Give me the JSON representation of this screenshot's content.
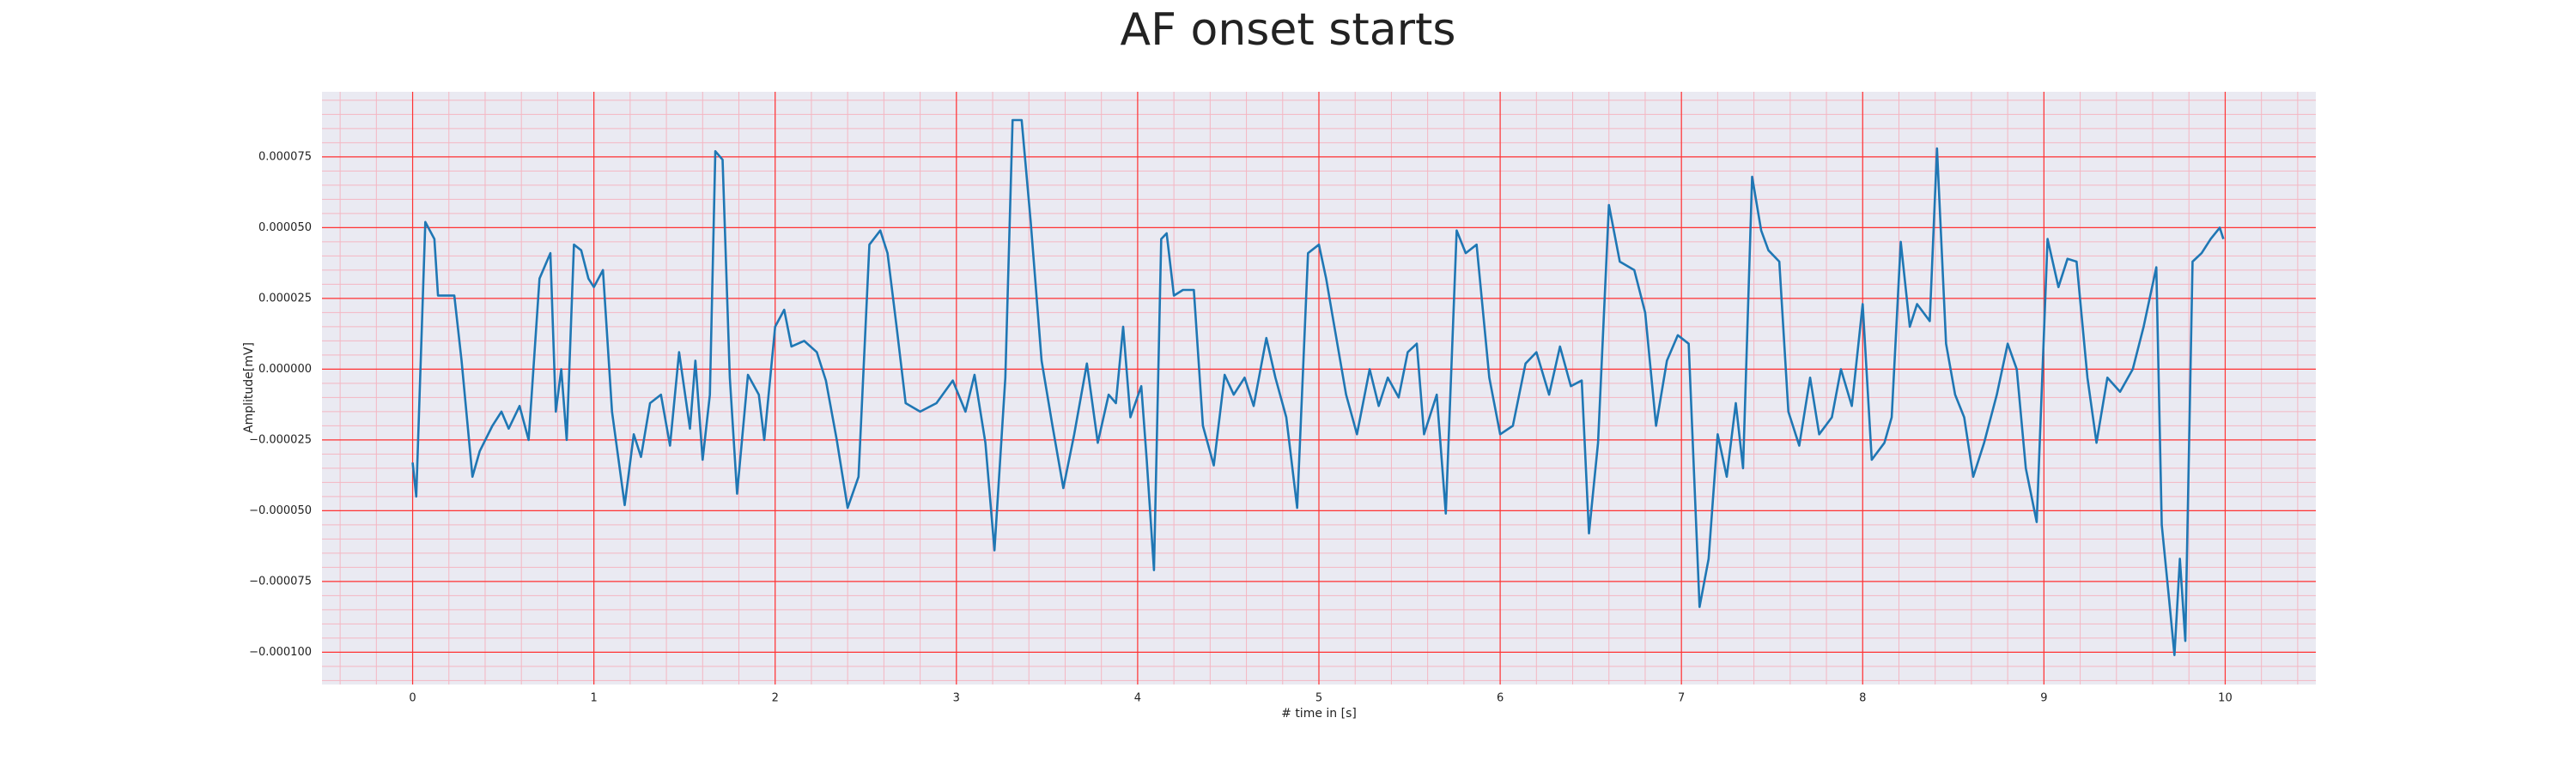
{
  "chart_data": {
    "type": "line",
    "title": "AF onset starts",
    "x_label": "# time in [s]",
    "y_label": "Amplitude[mV]",
    "color": "#1f77b4",
    "grid": true,
    "minor_grid": true,
    "xlim": [
      -0.5,
      10.5
    ],
    "xticks": [
      0,
      1,
      2,
      3,
      4,
      5,
      6,
      7,
      8,
      9,
      10
    ],
    "ylim": [
      -0.0001114,
      9.8e-05
    ],
    "yticks": [
      {
        "value": -0.0001,
        "label": "−0.000100"
      },
      {
        "value": -7.5e-05,
        "label": "−0.000075"
      },
      {
        "value": -5e-05,
        "label": "−0.000050"
      },
      {
        "value": -2.5e-05,
        "label": "−0.000025"
      },
      {
        "value": 0,
        "label": "0.000000"
      },
      {
        "value": 2.5e-05,
        "label": "0.000025"
      },
      {
        "value": 5e-05,
        "label": "0.000050"
      },
      {
        "value": 7.5e-05,
        "label": "0.000075"
      }
    ],
    "x": [
      0,
      0.02,
      0.07,
      0.12,
      0.14,
      0.18,
      0.23,
      0.27,
      0.33,
      0.37,
      0.44,
      0.49,
      0.53,
      0.59,
      0.64,
      0.7,
      0.76,
      0.79,
      0.82,
      0.85,
      0.89,
      0.93,
      0.97,
      1.0,
      1.05,
      1.1,
      1.17,
      1.22,
      1.26,
      1.31,
      1.37,
      1.42,
      1.47,
      1.53,
      1.56,
      1.6,
      1.64,
      1.67,
      1.71,
      1.75,
      1.79,
      1.85,
      1.91,
      1.94,
      2.0,
      2.05,
      2.09,
      2.16,
      2.23,
      2.28,
      2.34,
      2.4,
      2.46,
      2.52,
      2.58,
      2.62,
      2.67,
      2.72,
      2.8,
      2.89,
      2.98,
      3.05,
      3.1,
      3.16,
      3.21,
      3.27,
      3.31,
      3.36,
      3.41,
      3.47,
      3.53,
      3.59,
      3.65,
      3.72,
      3.78,
      3.84,
      3.88,
      3.92,
      3.96,
      4.02,
      4.05,
      4.09,
      4.13,
      4.16,
      4.2,
      4.25,
      4.31,
      4.36,
      4.42,
      4.48,
      4.53,
      4.59,
      4.64,
      4.71,
      4.76,
      4.82,
      4.88,
      4.94,
      5.0,
      5.04,
      5.08,
      5.15,
      5.21,
      5.28,
      5.33,
      5.38,
      5.44,
      5.49,
      5.54,
      5.58,
      5.65,
      5.7,
      5.76,
      5.81,
      5.87,
      5.94,
      6.0,
      6.07,
      6.14,
      6.2,
      6.27,
      6.33,
      6.39,
      6.45,
      6.49,
      6.54,
      6.6,
      6.66,
      6.74,
      6.8,
      6.86,
      6.92,
      6.98,
      7.04,
      7.1,
      7.15,
      7.2,
      7.25,
      7.3,
      7.34,
      7.39,
      7.44,
      7.48,
      7.54,
      7.59,
      7.65,
      7.71,
      7.76,
      7.83,
      7.88,
      7.94,
      8.0,
      8.05,
      8.12,
      8.16,
      8.21,
      8.26,
      8.3,
      8.37,
      8.41,
      8.46,
      8.51,
      8.56,
      8.61,
      8.67,
      8.74,
      8.8,
      8.85,
      8.9,
      8.96,
      9.02,
      9.08,
      9.13,
      9.18,
      9.24,
      9.29,
      9.35,
      9.42,
      9.49,
      9.55,
      9.62,
      9.65,
      9.69,
      9.72,
      9.75,
      9.78,
      9.82,
      9.87,
      9.92,
      9.97,
      9.99
    ],
    "values": [
      -3.3e-05,
      -4.5e-05,
      5.2e-05,
      4.6e-05,
      2.6e-05,
      2.6e-05,
      2.6e-05,
      3e-06,
      -3.8e-05,
      -2.9e-05,
      -2e-05,
      -1.5e-05,
      -2.1e-05,
      -1.3e-05,
      -2.5e-05,
      3.2e-05,
      4.1e-05,
      -1.5e-05,
      0,
      -2.5e-05,
      4.4e-05,
      4.2e-05,
      3.2e-05,
      2.9e-05,
      3.5e-05,
      -1.5e-05,
      -4.8e-05,
      -2.3e-05,
      -3.1e-05,
      -1.2e-05,
      -9e-06,
      -2.7e-05,
      6e-06,
      -2.1e-05,
      3e-06,
      -3.2e-05,
      -9e-06,
      7.7e-05,
      7.4e-05,
      -3e-06,
      -4.4e-05,
      -2e-06,
      -9e-06,
      -2.5e-05,
      1.5e-05,
      2.1e-05,
      8e-06,
      1e-05,
      6e-06,
      -4e-06,
      -2.5e-05,
      -4.9e-05,
      -3.8e-05,
      4.4e-05,
      4.9e-05,
      4.1e-05,
      1.5e-05,
      -1.2e-05,
      -1.5e-05,
      -1.2e-05,
      -4e-06,
      -1.5e-05,
      -2e-06,
      -2.6e-05,
      -6.4e-05,
      -3e-06,
      8.8e-05,
      8.8e-05,
      5.2e-05,
      3e-06,
      -2e-05,
      -4.2e-05,
      -2.3e-05,
      2e-06,
      -2.6e-05,
      -9e-06,
      -1.2e-05,
      1.5e-05,
      -1.7e-05,
      -6e-06,
      -3.2e-05,
      -7.1e-05,
      4.6e-05,
      4.8e-05,
      2.6e-05,
      2.8e-05,
      2.8e-05,
      -2e-05,
      -3.4e-05,
      -2e-06,
      -9e-06,
      -3e-06,
      -1.3e-05,
      1.1e-05,
      -3e-06,
      -1.7e-05,
      -4.9e-05,
      4.1e-05,
      4.4e-05,
      3.2e-05,
      1.7e-05,
      -9e-06,
      -2.3e-05,
      0,
      -1.3e-05,
      -3e-06,
      -1e-05,
      6e-06,
      9e-06,
      -2.3e-05,
      -9e-06,
      -5.1e-05,
      4.9e-05,
      4.1e-05,
      4.4e-05,
      -3e-06,
      -2.3e-05,
      -2e-05,
      2e-06,
      6e-06,
      -9e-06,
      8e-06,
      -6e-06,
      -4e-06,
      -5.8e-05,
      -2.6e-05,
      5.8e-05,
      3.8e-05,
      3.5e-05,
      2e-05,
      -2e-05,
      3e-06,
      1.2e-05,
      9e-06,
      -8.4e-05,
      -6.7e-05,
      -2.3e-05,
      -3.8e-05,
      -1.2e-05,
      -3.5e-05,
      6.8e-05,
      4.9e-05,
      4.2e-05,
      3.8e-05,
      -1.5e-05,
      -2.7e-05,
      -3e-06,
      -2.3e-05,
      -1.7e-05,
      0,
      -1.3e-05,
      2.3e-05,
      -3.2e-05,
      -2.6e-05,
      -1.7e-05,
      4.5e-05,
      1.5e-05,
      2.3e-05,
      1.7e-05,
      7.8e-05,
      9e-06,
      -9e-06,
      -1.7e-05,
      -3.8e-05,
      -2.6e-05,
      -9e-06,
      9e-06,
      0,
      -3.5e-05,
      -5.4e-05,
      4.6e-05,
      2.9e-05,
      3.9e-05,
      3.8e-05,
      -3e-06,
      -2.6e-05,
      -3e-06,
      -8e-06,
      0,
      1.5e-05,
      3.6e-05,
      -5.5e-05,
      -8.1e-05,
      -0.000101,
      -6.7e-05,
      -9.6e-05,
      3.8e-05,
      4.1e-05,
      4.6e-05,
      5e-05,
      4.6e-05
    ]
  }
}
